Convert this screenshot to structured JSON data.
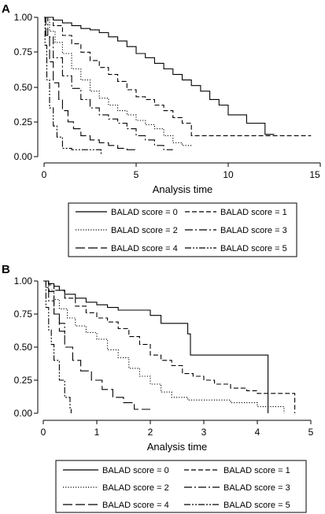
{
  "chart_data": [
    {
      "type": "line",
      "panel": "A",
      "xlabel": "Analysis time",
      "ylabel": "",
      "xlim": [
        0,
        15
      ],
      "ylim": [
        0,
        1
      ],
      "xticks": [
        "0",
        "5",
        "10",
        "15"
      ],
      "yticks": [
        "0.00",
        "0.25",
        "0.50",
        "0.75",
        "1.00"
      ],
      "grid": false,
      "legend_position": "below",
      "series": [
        {
          "name": "BALAD score = 0",
          "dash": "solid",
          "points": [
            [
              0,
              1.0
            ],
            [
              0.5,
              0.98
            ],
            [
              1,
              0.96
            ],
            [
              1.5,
              0.94
            ],
            [
              2,
              0.92
            ],
            [
              2.5,
              0.91
            ],
            [
              3,
              0.89
            ],
            [
              3.5,
              0.86
            ],
            [
              4,
              0.83
            ],
            [
              4.5,
              0.79
            ],
            [
              5,
              0.74
            ],
            [
              5.5,
              0.71
            ],
            [
              6,
              0.67
            ],
            [
              6.5,
              0.63
            ],
            [
              7,
              0.59
            ],
            [
              7.5,
              0.55
            ],
            [
              8,
              0.51
            ],
            [
              8.5,
              0.47
            ],
            [
              9,
              0.41
            ],
            [
              9.5,
              0.37
            ],
            [
              10,
              0.3
            ],
            [
              11,
              0.24
            ],
            [
              12,
              0.16
            ],
            [
              12.5,
              0.16
            ]
          ]
        },
        {
          "name": "BALAD score = 1",
          "dash": "dash",
          "points": [
            [
              0,
              1.0
            ],
            [
              0.5,
              0.94
            ],
            [
              1,
              0.87
            ],
            [
              1.5,
              0.81
            ],
            [
              2,
              0.75
            ],
            [
              2.5,
              0.69
            ],
            [
              3,
              0.64
            ],
            [
              3.5,
              0.59
            ],
            [
              4,
              0.54
            ],
            [
              4.5,
              0.48
            ],
            [
              5,
              0.43
            ],
            [
              5.5,
              0.41
            ],
            [
              6,
              0.37
            ],
            [
              6.5,
              0.33
            ],
            [
              7,
              0.28
            ],
            [
              7.5,
              0.24
            ],
            [
              8,
              0.15
            ],
            [
              9,
              0.15
            ],
            [
              10,
              0.15
            ],
            [
              12,
              0.15
            ],
            [
              14.5,
              0.15
            ]
          ]
        },
        {
          "name": "BALAD score = 2",
          "dash": "dot",
          "points": [
            [
              0,
              1.0
            ],
            [
              0.3,
              0.9
            ],
            [
              0.6,
              0.82
            ],
            [
              1,
              0.74
            ],
            [
              1.5,
              0.63
            ],
            [
              2,
              0.55
            ],
            [
              2.5,
              0.47
            ],
            [
              3,
              0.42
            ],
            [
              3.5,
              0.37
            ],
            [
              4,
              0.33
            ],
            [
              4.5,
              0.3
            ],
            [
              5,
              0.26
            ],
            [
              5.5,
              0.23
            ],
            [
              6,
              0.2
            ],
            [
              6.5,
              0.15
            ],
            [
              7,
              0.1
            ],
            [
              7.5,
              0.08
            ],
            [
              8,
              0.08
            ]
          ]
        },
        {
          "name": "BALAD score = 3",
          "dash": "dashdot",
          "points": [
            [
              0,
              1.0
            ],
            [
              0.2,
              0.86
            ],
            [
              0.5,
              0.71
            ],
            [
              1,
              0.58
            ],
            [
              1.5,
              0.49
            ],
            [
              2,
              0.41
            ],
            [
              2.5,
              0.35
            ],
            [
              3,
              0.3
            ],
            [
              3.5,
              0.27
            ],
            [
              4,
              0.24
            ],
            [
              4.5,
              0.2
            ],
            [
              5,
              0.15
            ],
            [
              5.5,
              0.12
            ],
            [
              6,
              0.08
            ],
            [
              6.5,
              0.05
            ],
            [
              7,
              0.05
            ]
          ]
        },
        {
          "name": "BALAD score = 4",
          "dash": "longdash",
          "points": [
            [
              0,
              1.0
            ],
            [
              0.1,
              0.87
            ],
            [
              0.3,
              0.68
            ],
            [
              0.5,
              0.53
            ],
            [
              0.8,
              0.41
            ],
            [
              1,
              0.33
            ],
            [
              1.3,
              0.25
            ],
            [
              1.6,
              0.2
            ],
            [
              2,
              0.15
            ],
            [
              2.5,
              0.12
            ],
            [
              3,
              0.1
            ],
            [
              3.5,
              0.08
            ],
            [
              4,
              0.06
            ],
            [
              4.5,
              0.05
            ],
            [
              5,
              0.05
            ]
          ]
        },
        {
          "name": "BALAD score = 5",
          "dash": "dashdotdot",
          "points": [
            [
              0,
              1.0
            ],
            [
              0.05,
              0.8
            ],
            [
              0.15,
              0.55
            ],
            [
              0.3,
              0.35
            ],
            [
              0.5,
              0.22
            ],
            [
              0.7,
              0.14
            ],
            [
              1,
              0.06
            ],
            [
              1.5,
              0.05
            ],
            [
              2.2,
              0.05
            ],
            [
              3,
              0.05
            ],
            [
              3.1,
              0.02
            ]
          ]
        }
      ]
    },
    {
      "type": "line",
      "panel": "B",
      "xlabel": "Analysis time",
      "ylabel": "",
      "xlim": [
        0,
        5
      ],
      "ylim": [
        0,
        1
      ],
      "xticks": [
        "0",
        "1",
        "2",
        "3",
        "4",
        "5"
      ],
      "yticks": [
        "0.00",
        "0.25",
        "0.50",
        "0.75",
        "1.00"
      ],
      "grid": false,
      "legend_position": "below",
      "series": [
        {
          "name": "BALAD score = 0",
          "dash": "solid",
          "points": [
            [
              0,
              1.0
            ],
            [
              0.1,
              0.98
            ],
            [
              0.2,
              0.96
            ],
            [
              0.3,
              0.93
            ],
            [
              0.4,
              0.9
            ],
            [
              0.6,
              0.87
            ],
            [
              0.8,
              0.84
            ],
            [
              1,
              0.82
            ],
            [
              1.2,
              0.8
            ],
            [
              1.4,
              0.78
            ],
            [
              1.7,
              0.78
            ],
            [
              2,
              0.74
            ],
            [
              2.2,
              0.68
            ],
            [
              2.5,
              0.68
            ],
            [
              2.7,
              0.6
            ],
            [
              2.75,
              0.44
            ],
            [
              3,
              0.44
            ],
            [
              3.5,
              0.44
            ],
            [
              4,
              0.44
            ],
            [
              4.2,
              0.44
            ],
            [
              4.2,
              0.0
            ]
          ]
        },
        {
          "name": "BALAD score = 1",
          "dash": "dash",
          "points": [
            [
              0,
              1.0
            ],
            [
              0.1,
              0.97
            ],
            [
              0.2,
              0.93
            ],
            [
              0.4,
              0.87
            ],
            [
              0.6,
              0.81
            ],
            [
              0.8,
              0.76
            ],
            [
              1,
              0.72
            ],
            [
              1.2,
              0.69
            ],
            [
              1.4,
              0.64
            ],
            [
              1.6,
              0.58
            ],
            [
              1.8,
              0.52
            ],
            [
              2,
              0.44
            ],
            [
              2.2,
              0.4
            ],
            [
              2.4,
              0.36
            ],
            [
              2.6,
              0.3
            ],
            [
              2.8,
              0.28
            ],
            [
              3,
              0.25
            ],
            [
              3.2,
              0.22
            ],
            [
              3.5,
              0.19
            ],
            [
              3.8,
              0.17
            ],
            [
              4,
              0.15
            ],
            [
              4.3,
              0.15
            ],
            [
              4.7,
              0.15
            ],
            [
              4.7,
              0.0
            ]
          ]
        },
        {
          "name": "BALAD score = 2",
          "dash": "dot",
          "points": [
            [
              0,
              1.0
            ],
            [
              0.1,
              0.93
            ],
            [
              0.2,
              0.86
            ],
            [
              0.3,
              0.79
            ],
            [
              0.45,
              0.72
            ],
            [
              0.6,
              0.66
            ],
            [
              0.8,
              0.61
            ],
            [
              1,
              0.56
            ],
            [
              1.2,
              0.48
            ],
            [
              1.4,
              0.42
            ],
            [
              1.6,
              0.34
            ],
            [
              1.8,
              0.28
            ],
            [
              2,
              0.22
            ],
            [
              2.2,
              0.16
            ],
            [
              2.4,
              0.12
            ],
            [
              2.7,
              0.1
            ],
            [
              3,
              0.1
            ],
            [
              3.5,
              0.08
            ],
            [
              4,
              0.05
            ],
            [
              4.5,
              0.05
            ],
            [
              4.5,
              0.0
            ]
          ]
        },
        {
          "name": "BALAD score = 3",
          "dash": "dashdot",
          "points": [
            [
              0,
              1.0
            ],
            [
              0.05,
              0.95
            ],
            [
              0.1,
              0.85
            ],
            [
              0.2,
              0.75
            ],
            [
              0.3,
              0.68
            ],
            [
              0.4,
              0.6
            ]
          ]
        },
        {
          "name": "BALAD score = 4",
          "dash": "longdash",
          "points": [
            [
              0,
              1.0
            ],
            [
              0.1,
              0.92
            ],
            [
              0.2,
              0.75
            ],
            [
              0.3,
              0.62
            ],
            [
              0.4,
              0.5
            ],
            [
              0.55,
              0.4
            ],
            [
              0.7,
              0.32
            ],
            [
              0.9,
              0.25
            ],
            [
              1.1,
              0.18
            ],
            [
              1.3,
              0.12
            ],
            [
              1.5,
              0.08
            ],
            [
              1.7,
              0.03
            ],
            [
              2,
              0.03
            ]
          ]
        },
        {
          "name": "BALAD score = 5",
          "dash": "dashdotdot",
          "points": [
            [
              0,
              1.0
            ],
            [
              0.05,
              0.8
            ],
            [
              0.1,
              0.63
            ],
            [
              0.15,
              0.52
            ],
            [
              0.2,
              0.4
            ],
            [
              0.3,
              0.25
            ],
            [
              0.4,
              0.12
            ],
            [
              0.5,
              0.03
            ],
            [
              0.52,
              0.0
            ]
          ]
        }
      ]
    }
  ]
}
